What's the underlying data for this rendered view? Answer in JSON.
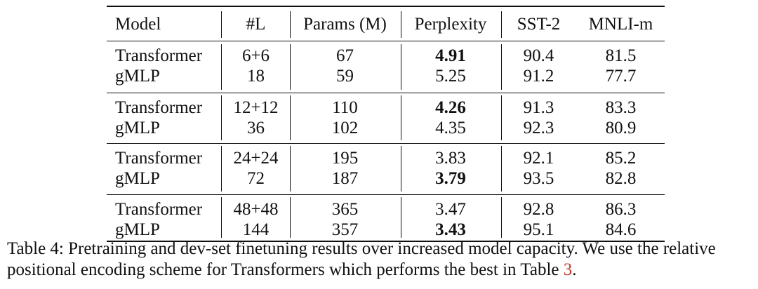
{
  "table": {
    "headers": [
      "Model",
      "#L",
      "Params (M)",
      "Perplexity",
      "SST-2",
      "MNLI-m"
    ],
    "groups": [
      {
        "rows": [
          {
            "model": "Transformer",
            "layers": "6+6",
            "params": "67",
            "perplexity": "4.91",
            "sst2": "90.4",
            "mnli": "81.5",
            "bold_perplexity": true
          },
          {
            "model": "gMLP",
            "layers": "18",
            "params": "59",
            "perplexity": "5.25",
            "sst2": "91.2",
            "mnli": "77.7",
            "bold_perplexity": false
          }
        ]
      },
      {
        "rows": [
          {
            "model": "Transformer",
            "layers": "12+12",
            "params": "110",
            "perplexity": "4.26",
            "sst2": "91.3",
            "mnli": "83.3",
            "bold_perplexity": true
          },
          {
            "model": "gMLP",
            "layers": "36",
            "params": "102",
            "perplexity": "4.35",
            "sst2": "92.3",
            "mnli": "80.9",
            "bold_perplexity": false
          }
        ]
      },
      {
        "rows": [
          {
            "model": "Transformer",
            "layers": "24+24",
            "params": "195",
            "perplexity": "3.83",
            "sst2": "92.1",
            "mnli": "85.2",
            "bold_perplexity": false
          },
          {
            "model": "gMLP",
            "layers": "72",
            "params": "187",
            "perplexity": "3.79",
            "sst2": "93.5",
            "mnli": "82.8",
            "bold_perplexity": true
          }
        ]
      },
      {
        "rows": [
          {
            "model": "Transformer",
            "layers": "48+48",
            "params": "365",
            "perplexity": "3.47",
            "sst2": "92.8",
            "mnli": "86.3",
            "bold_perplexity": false
          },
          {
            "model": "gMLP",
            "layers": "144",
            "params": "357",
            "perplexity": "3.43",
            "sst2": "95.1",
            "mnli": "84.6",
            "bold_perplexity": true
          }
        ]
      }
    ]
  },
  "caption": {
    "text_before": "Table 4: Pretraining and dev-set finetuning results over increased model capacity. We use the relative positional encoding scheme for Transformers which performs the best in Table ",
    "ref": "3",
    "text_after": "."
  },
  "colors": {
    "text": "#111111",
    "reference_link": "#c0392b"
  }
}
